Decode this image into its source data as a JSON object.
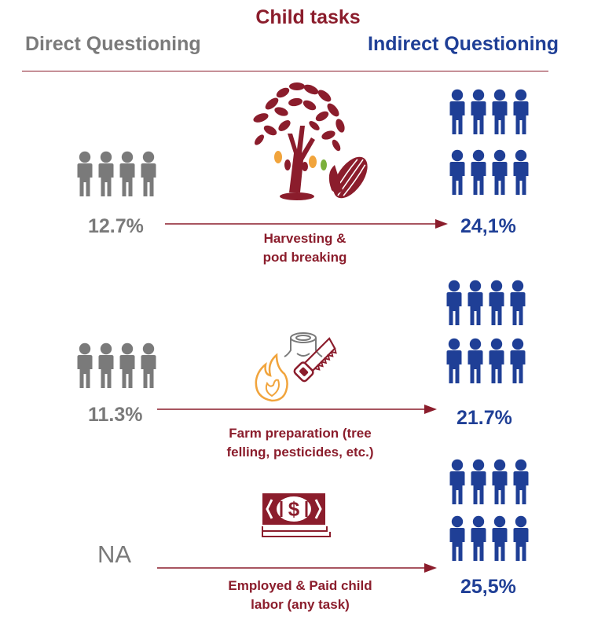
{
  "title": "Child tasks",
  "left_header": "Direct Questioning",
  "right_header": "Indirect Questioning",
  "colors": {
    "maroon": "#8b1d2c",
    "gray": "#7a7a7a",
    "blue": "#1f3f96",
    "orange": "#f1a43c"
  },
  "rows": [
    {
      "direct": "12.7%",
      "indirect": "24,1%",
      "caption_line1": "Harvesting &",
      "caption_line2": "pod breaking",
      "icon": "cocoa-tree-icon"
    },
    {
      "direct": "11.3%",
      "indirect": "21.7%",
      "caption_line1": "Farm preparation (tree",
      "caption_line2": "felling, pesticides, etc.)",
      "icon": "fire-stump-saw-icon"
    },
    {
      "direct": "NA",
      "indirect": "25,5%",
      "caption_line1": "Employed & Paid child",
      "caption_line2": "labor (any task)",
      "icon": "money-icon"
    }
  ],
  "people_icon": "people-group-icon"
}
